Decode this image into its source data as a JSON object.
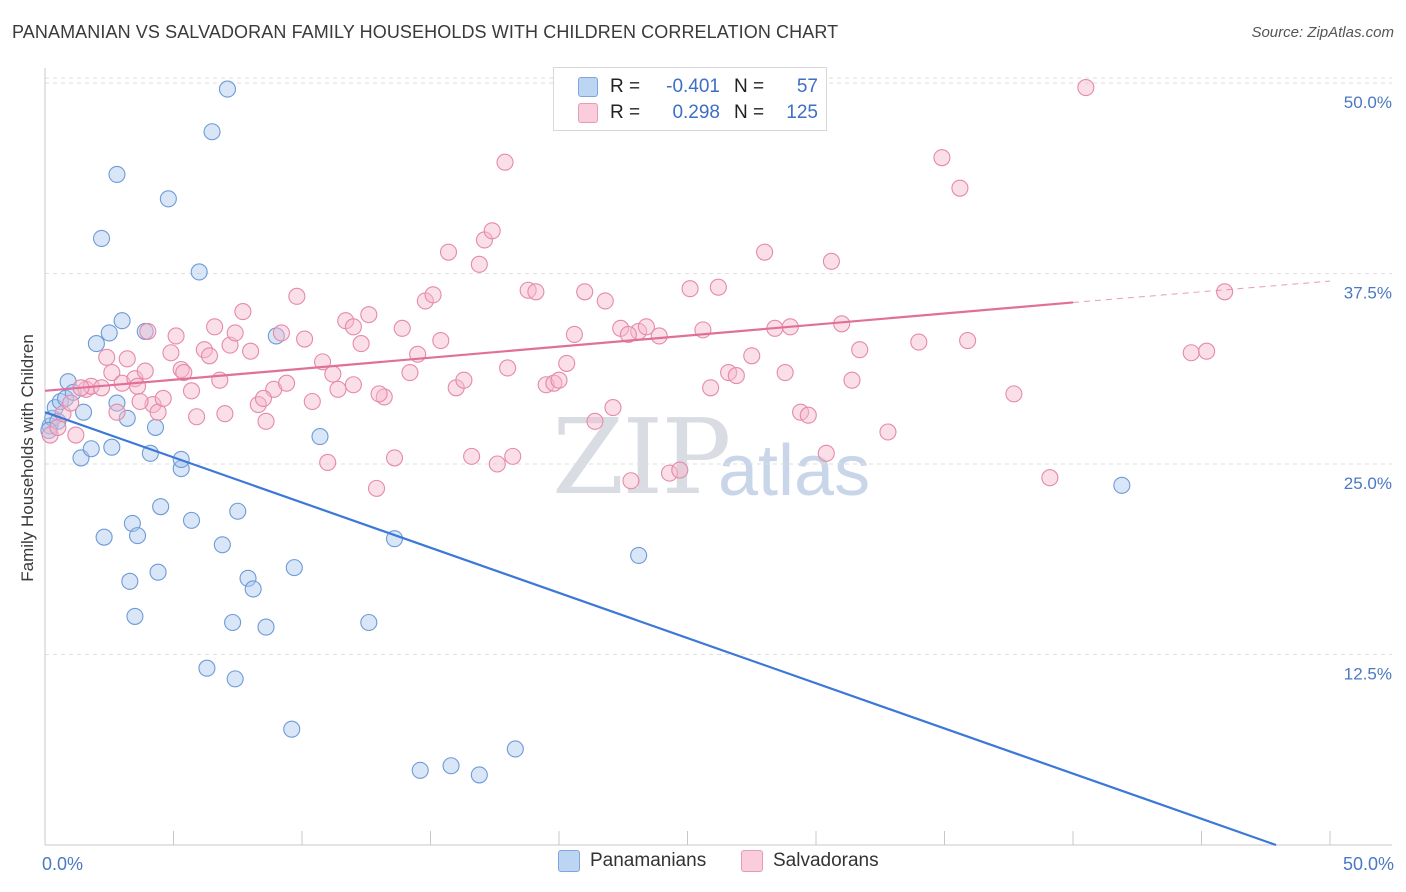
{
  "title": "PANAMANIAN VS SALVADORAN FAMILY HOUSEHOLDS WITH CHILDREN CORRELATION CHART",
  "source": "Source: ZipAtlas.com",
  "watermark": {
    "zip": "ZIP",
    "atlas": "atlas"
  },
  "legend_top": {
    "rows": [
      {
        "r_label": "R =",
        "r_value": "-0.401",
        "n_label": "N =",
        "n_value": "57",
        "color": "#a9c8ef"
      },
      {
        "r_label": "R =",
        "r_value": "0.298",
        "n_label": "N =",
        "n_value": "125",
        "color": "#f6b8cb"
      }
    ]
  },
  "legend_bottom": [
    {
      "label": "Panamanians",
      "color": "#a9c8ef"
    },
    {
      "label": "Salvadorans",
      "color": "#f6b8cb"
    }
  ],
  "chart_data": {
    "type": "scatter",
    "title": "PANAMANIAN VS SALVADORAN FAMILY HOUSEHOLDS WITH CHILDREN CORRELATION CHART",
    "xlabel": "",
    "ylabel": "Family Households with Children",
    "xlim": [
      0,
      50
    ],
    "ylim": [
      0,
      50
    ],
    "x_tick_labels": [
      "0.0%",
      "50.0%"
    ],
    "y_tick_labels": [
      "12.5%",
      "25.0%",
      "37.5%",
      "50.0%"
    ],
    "y_ticks": [
      12.5,
      25,
      37.5,
      50
    ],
    "grid": true,
    "legend_position": "top-center",
    "series": [
      {
        "name": "Panamanians",
        "color": "#a9c8ef",
        "stroke": "#6e9ad6",
        "trend": {
          "x": [
            0,
            47.9
          ],
          "y": [
            28.4,
            0
          ],
          "color": "#3b78d8"
        },
        "points": [
          [
            0.2,
            27.5
          ],
          [
            0.3,
            28
          ],
          [
            0.4,
            28.7
          ],
          [
            0.5,
            27.8
          ],
          [
            0.6,
            29.1
          ],
          [
            0.8,
            29.3
          ],
          [
            0.9,
            30.4
          ],
          [
            1.1,
            29.7
          ],
          [
            1.5,
            28.4
          ],
          [
            1.4,
            25.4
          ],
          [
            1.8,
            26.0
          ],
          [
            2.0,
            32.9
          ],
          [
            2.2,
            39.8
          ],
          [
            2.3,
            20.2
          ],
          [
            2.5,
            33.6
          ],
          [
            2.6,
            26.1
          ],
          [
            2.8,
            29.0
          ],
          [
            2.8,
            44.0
          ],
          [
            3.0,
            34.4
          ],
          [
            3.2,
            28.0
          ],
          [
            3.3,
            17.3
          ],
          [
            3.4,
            21.1
          ],
          [
            3.5,
            15.0
          ],
          [
            3.6,
            20.3
          ],
          [
            3.9,
            33.7
          ],
          [
            4.1,
            25.7
          ],
          [
            4.3,
            27.4
          ],
          [
            4.4,
            17.9
          ],
          [
            4.5,
            22.2
          ],
          [
            4.8,
            42.4
          ],
          [
            5.3,
            24.7
          ],
          [
            5.3,
            25.3
          ],
          [
            5.7,
            21.3
          ],
          [
            6.0,
            37.6
          ],
          [
            6.3,
            11.6
          ],
          [
            6.5,
            46.8
          ],
          [
            6.9,
            19.7
          ],
          [
            7.1,
            49.6
          ],
          [
            7.3,
            14.6
          ],
          [
            7.4,
            10.9
          ],
          [
            7.5,
            21.9
          ],
          [
            7.9,
            17.5
          ],
          [
            8.1,
            16.8
          ],
          [
            8.6,
            14.3
          ],
          [
            9.0,
            33.4
          ],
          [
            9.6,
            7.6
          ],
          [
            9.7,
            18.2
          ],
          [
            10.7,
            26.8
          ],
          [
            12.6,
            14.6
          ],
          [
            13.6,
            20.1
          ],
          [
            14.6,
            4.9
          ],
          [
            15.8,
            5.2
          ],
          [
            16.9,
            4.6
          ],
          [
            18.3,
            6.3
          ],
          [
            23.1,
            19.0
          ],
          [
            41.9,
            23.6
          ],
          [
            0.15,
            27.2
          ]
        ]
      },
      {
        "name": "Salvadorans",
        "color": "#f6b8cb",
        "stroke": "#e58aa8",
        "trend": {
          "x": [
            0,
            40
          ],
          "y": [
            29.8,
            35.6
          ],
          "color": "#e0709a"
        },
        "trend_dashed": {
          "x": [
            40,
            50
          ],
          "y": [
            35.6,
            37.0
          ]
        },
        "points": [
          [
            0.2,
            26.9
          ],
          [
            0.5,
            27.4
          ],
          [
            0.7,
            28.3
          ],
          [
            1.0,
            29.0
          ],
          [
            1.2,
            26.9
          ],
          [
            1.6,
            29.9
          ],
          [
            1.8,
            30.1
          ],
          [
            2.2,
            30.0
          ],
          [
            2.4,
            32.0
          ],
          [
            2.6,
            31.0
          ],
          [
            2.8,
            28.4
          ],
          [
            3.0,
            30.3
          ],
          [
            3.2,
            31.9
          ],
          [
            3.5,
            30.6
          ],
          [
            3.6,
            30.1
          ],
          [
            3.9,
            31.1
          ],
          [
            4.0,
            33.7
          ],
          [
            4.2,
            28.9
          ],
          [
            4.4,
            28.4
          ],
          [
            4.6,
            29.3
          ],
          [
            4.9,
            32.3
          ],
          [
            5.1,
            33.4
          ],
          [
            5.3,
            31.2
          ],
          [
            5.7,
            29.8
          ],
          [
            5.9,
            28.1
          ],
          [
            6.2,
            32.5
          ],
          [
            6.4,
            32.1
          ],
          [
            6.6,
            34.0
          ],
          [
            6.8,
            30.5
          ],
          [
            7.0,
            28.3
          ],
          [
            7.2,
            32.8
          ],
          [
            7.4,
            33.6
          ],
          [
            7.7,
            35.0
          ],
          [
            8.0,
            32.4
          ],
          [
            8.3,
            28.9
          ],
          [
            8.6,
            27.8
          ],
          [
            8.9,
            29.9
          ],
          [
            9.2,
            33.6
          ],
          [
            9.4,
            30.3
          ],
          [
            9.8,
            36.0
          ],
          [
            10.1,
            33.2
          ],
          [
            10.4,
            29.1
          ],
          [
            10.8,
            31.7
          ],
          [
            11.0,
            25.1
          ],
          [
            11.2,
            30.9
          ],
          [
            11.4,
            29.9
          ],
          [
            11.7,
            34.4
          ],
          [
            12.0,
            30.2
          ],
          [
            12.3,
            32.9
          ],
          [
            12.6,
            34.8
          ],
          [
            12.9,
            23.4
          ],
          [
            13.2,
            29.4
          ],
          [
            13.6,
            25.4
          ],
          [
            13.9,
            33.9
          ],
          [
            14.2,
            31.0
          ],
          [
            14.5,
            32.2
          ],
          [
            14.8,
            35.7
          ],
          [
            15.1,
            36.1
          ],
          [
            15.4,
            33.1
          ],
          [
            15.7,
            38.9
          ],
          [
            16.0,
            30.0
          ],
          [
            16.3,
            30.5
          ],
          [
            16.6,
            25.5
          ],
          [
            16.9,
            38.1
          ],
          [
            17.1,
            39.7
          ],
          [
            17.4,
            40.3
          ],
          [
            17.6,
            25.0
          ],
          [
            17.9,
            44.8
          ],
          [
            18.2,
            25.5
          ],
          [
            18.8,
            36.4
          ],
          [
            19.1,
            36.3
          ],
          [
            19.5,
            30.2
          ],
          [
            19.8,
            30.3
          ],
          [
            20.3,
            31.6
          ],
          [
            20.6,
            33.5
          ],
          [
            21.0,
            36.3
          ],
          [
            21.4,
            27.8
          ],
          [
            21.8,
            35.7
          ],
          [
            22.1,
            28.7
          ],
          [
            22.4,
            33.9
          ],
          [
            22.8,
            23.9
          ],
          [
            23.1,
            33.7
          ],
          [
            23.4,
            34.0
          ],
          [
            23.9,
            33.4
          ],
          [
            24.3,
            24.4
          ],
          [
            24.7,
            24.6
          ],
          [
            25.1,
            36.5
          ],
          [
            25.6,
            33.8
          ],
          [
            25.9,
            30.0
          ],
          [
            26.2,
            36.6
          ],
          [
            26.6,
            31.0
          ],
          [
            27.5,
            32.1
          ],
          [
            28.0,
            38.9
          ],
          [
            28.4,
            33.9
          ],
          [
            28.8,
            31.0
          ],
          [
            29.4,
            28.4
          ],
          [
            29.7,
            28.2
          ],
          [
            30.4,
            25.7
          ],
          [
            30.6,
            38.3
          ],
          [
            31.0,
            34.2
          ],
          [
            31.4,
            30.5
          ],
          [
            32.8,
            27.1
          ],
          [
            34.9,
            45.1
          ],
          [
            35.6,
            43.1
          ],
          [
            35.9,
            33.1
          ],
          [
            37.7,
            29.6
          ],
          [
            39.1,
            24.1
          ],
          [
            40.5,
            49.7
          ],
          [
            44.6,
            32.3
          ],
          [
            45.2,
            32.4
          ],
          [
            45.9,
            36.3
          ],
          [
            3.7,
            29.1
          ],
          [
            5.4,
            31.0
          ],
          [
            8.5,
            29.3
          ],
          [
            12.0,
            34.0
          ],
          [
            13.0,
            29.6
          ],
          [
            18.0,
            31.3
          ],
          [
            20.0,
            30.5
          ],
          [
            22.7,
            33.5
          ],
          [
            26.9,
            30.8
          ],
          [
            29.0,
            34.0
          ],
          [
            31.7,
            32.5
          ],
          [
            34.0,
            33.0
          ],
          [
            1.4,
            30.0
          ]
        ]
      }
    ]
  }
}
